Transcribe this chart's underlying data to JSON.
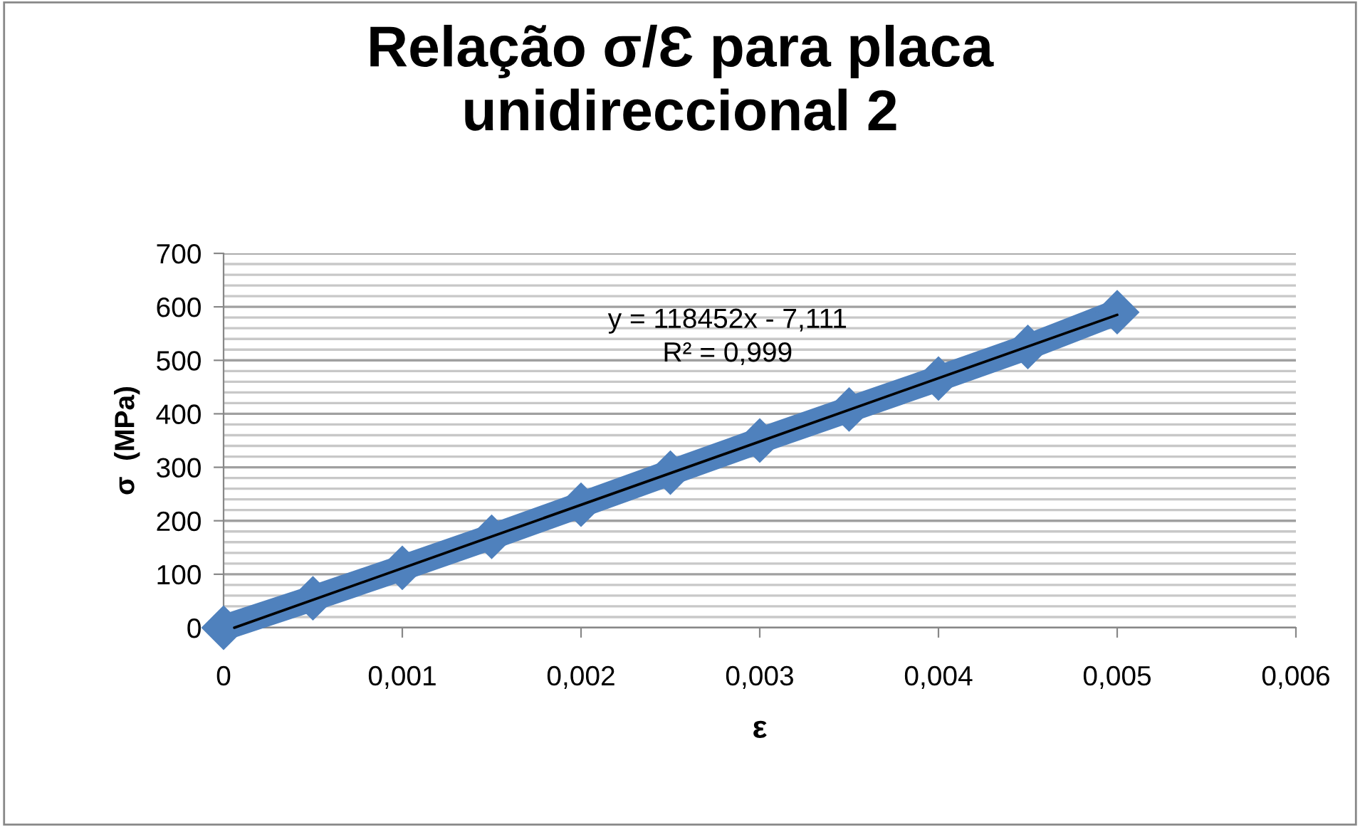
{
  "chart_data": {
    "type": "line",
    "title": "Relação σ/Ɛ para placa unidireccional 2",
    "xlabel": "ε",
    "ylabel": "σ  (MPa)",
    "xlim": [
      0,
      0.006
    ],
    "xticks": [
      {
        "value": 0,
        "label": "0"
      },
      {
        "value": 0.001,
        "label": "0,001"
      },
      {
        "value": 0.002,
        "label": "0,002"
      },
      {
        "value": 0.003,
        "label": "0,003"
      },
      {
        "value": 0.004,
        "label": "0,004"
      },
      {
        "value": 0.005,
        "label": "0,005"
      },
      {
        "value": 0.006,
        "label": "0,006"
      }
    ],
    "ylim": [
      0,
      700
    ],
    "yticks": [
      0,
      100,
      200,
      300,
      400,
      500,
      600,
      700
    ],
    "grid": "y",
    "series": [
      {
        "color": "#4f81bd",
        "marker": "diamond",
        "x": [
          0,
          0.0005,
          0.001,
          0.0015,
          0.002,
          0.0025,
          0.003,
          0.0035,
          0.004,
          0.0045,
          0.005
        ],
        "values": [
          0,
          55,
          112,
          170,
          230,
          290,
          350,
          408,
          466,
          525,
          590
        ]
      },
      {
        "type": "line",
        "color": "#000000",
        "marker": "none",
        "x": [
          6e-05,
          0.005
        ],
        "values": [
          0,
          585
        ]
      }
    ],
    "annotations": [
      "y = 118452x - 7,111",
      "R² = 0,999"
    ]
  }
}
